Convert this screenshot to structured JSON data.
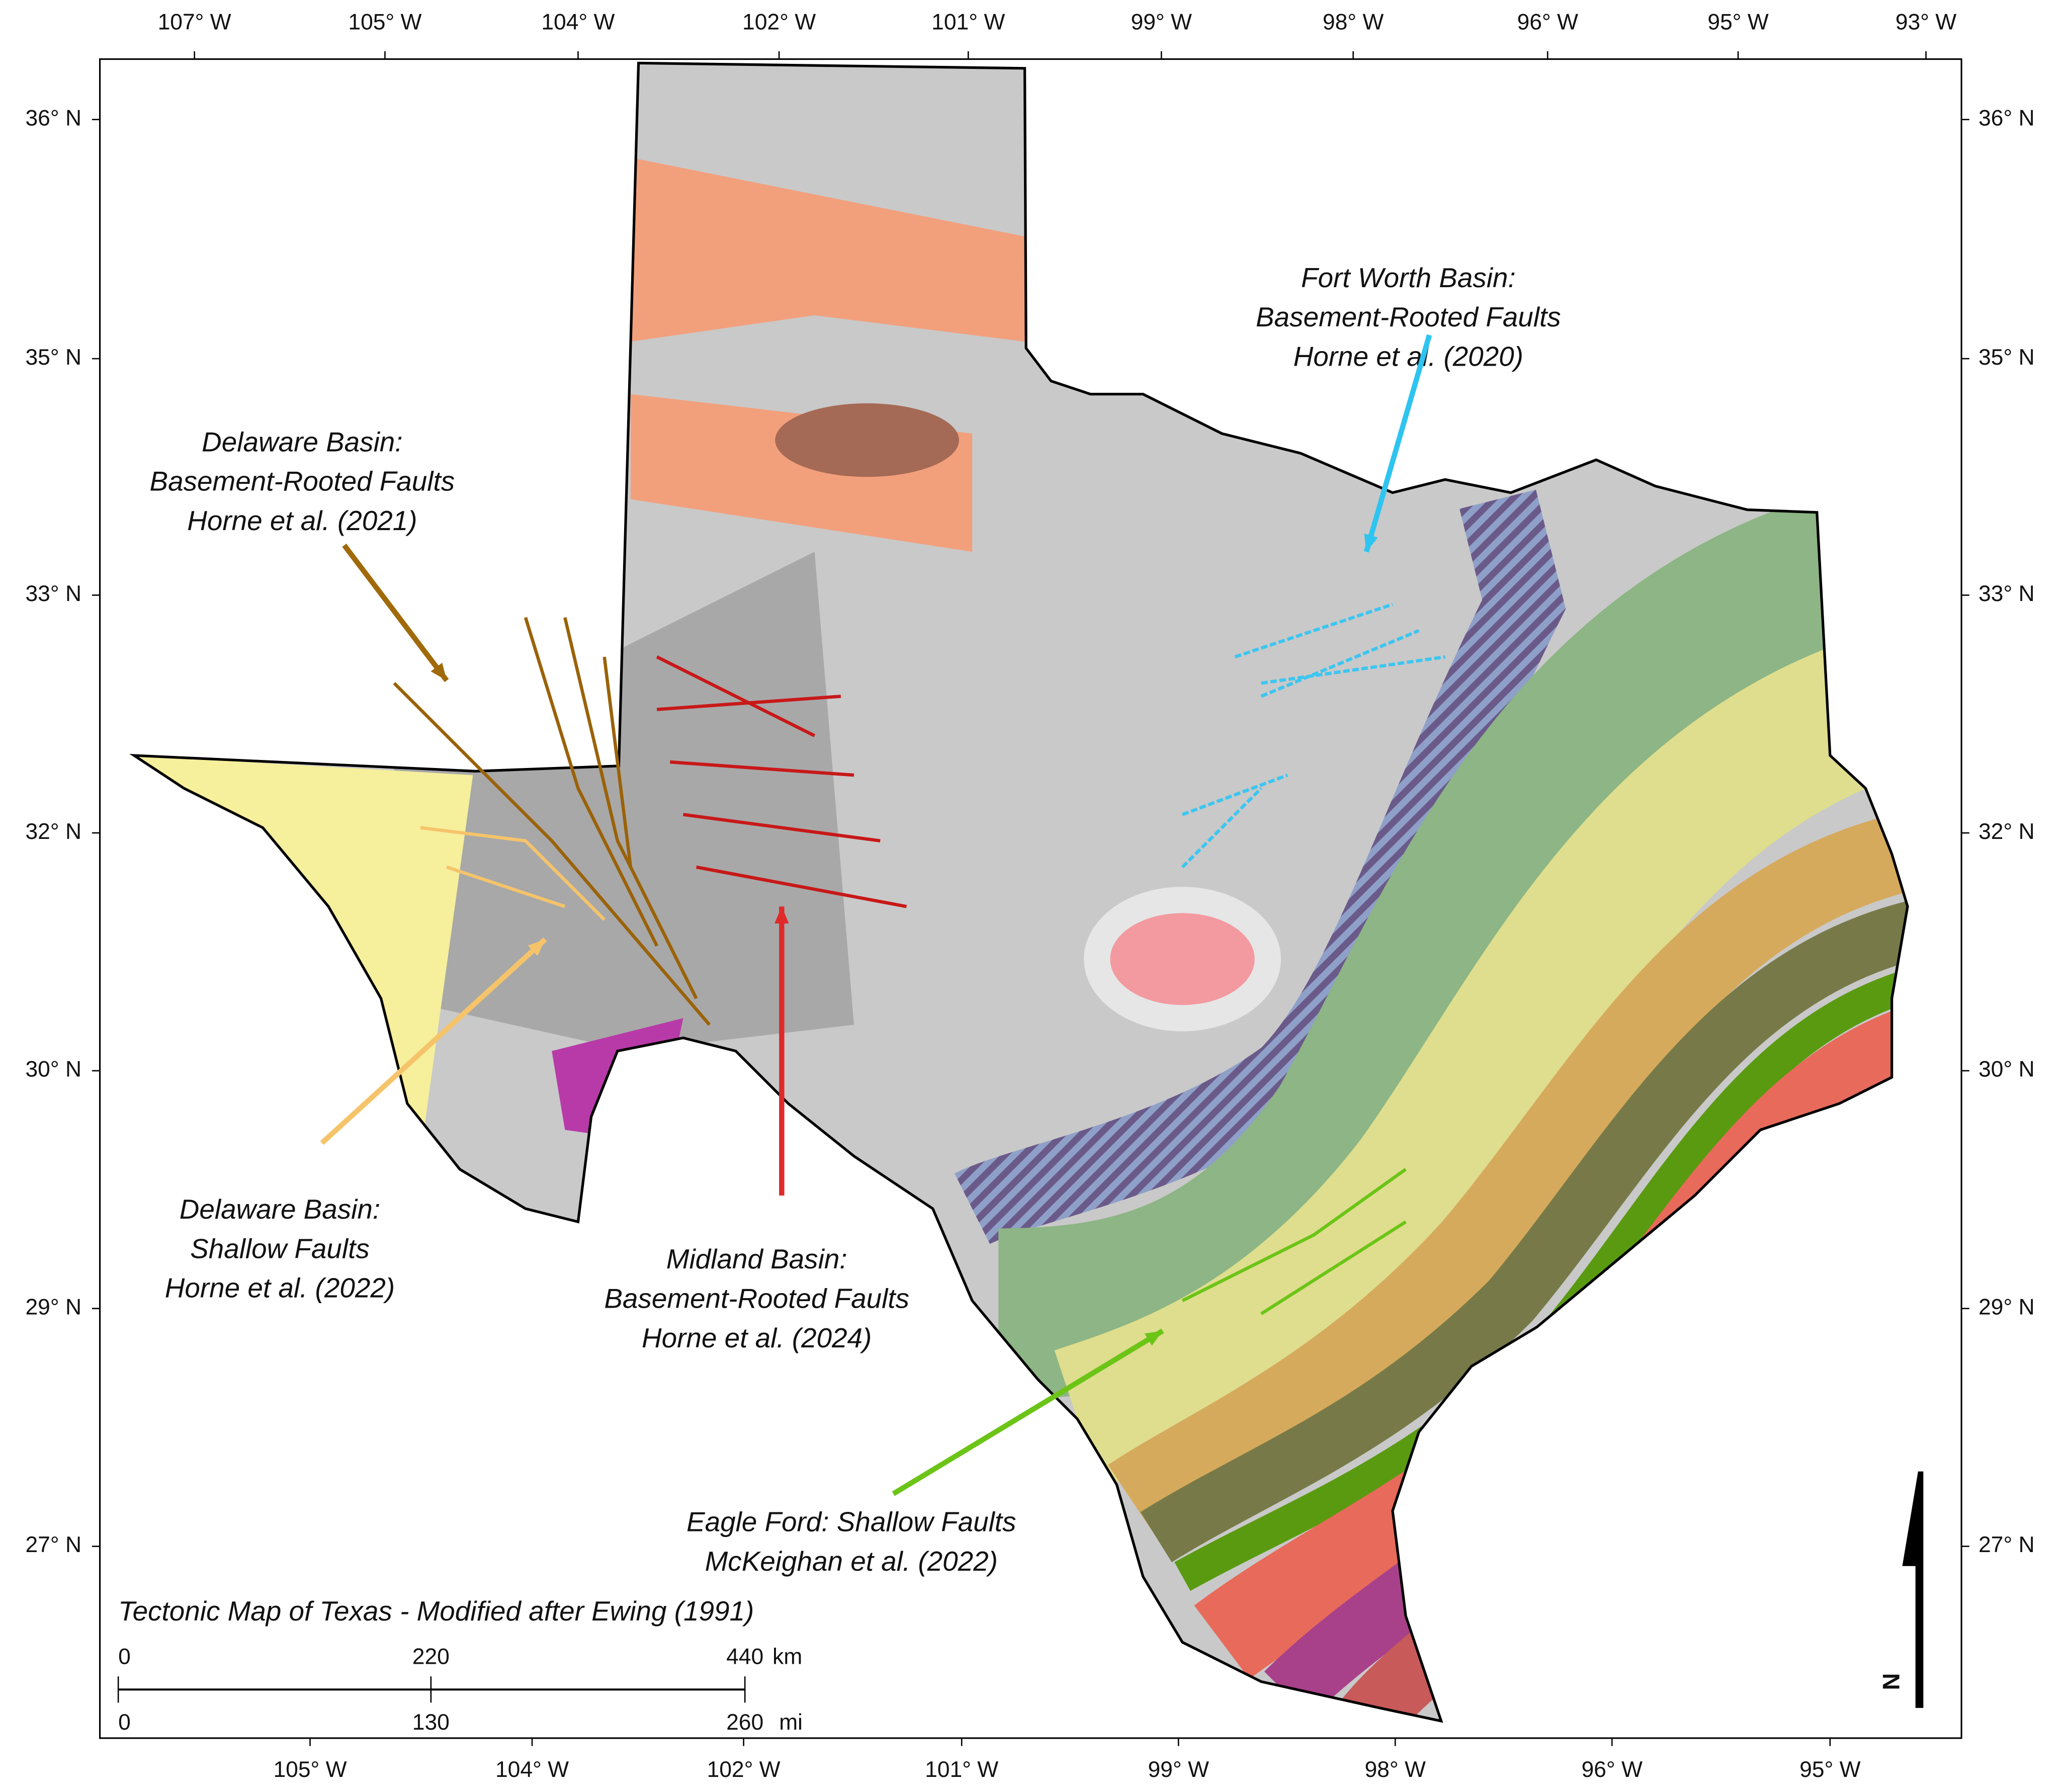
{
  "title": "Tectonic Map of Texas - Modified after Ewing (1991)",
  "axes": {
    "top": [
      "107° W",
      "105° W",
      "104° W",
      "102° W",
      "101° W",
      "99° W",
      "98° W",
      "96° W",
      "95° W",
      "93° W"
    ],
    "bottom": [
      "105° W",
      "104° W",
      "102° W",
      "101° W",
      "99° W",
      "98° W",
      "96° W",
      "95° W"
    ],
    "left": [
      "36° N",
      "35° N",
      "33° N",
      "32° N",
      "30° N",
      "29° N",
      "27° N"
    ],
    "right": [
      "36° N",
      "35° N",
      "33° N",
      "32° N",
      "30° N",
      "29° N",
      "27° N"
    ]
  },
  "annotations": [
    {
      "lines": [
        "Fort Worth Basin:",
        "Basement-Rooted Faults",
        "Horne et al. (2020)"
      ]
    },
    {
      "lines": [
        "Delaware Basin:",
        "Basement-Rooted Faults",
        "Horne et al. (2021)"
      ]
    },
    {
      "lines": [
        "Delaware Basin:",
        "Shallow Faults",
        "Horne et al. (2022)"
      ]
    },
    {
      "lines": [
        "Midland Basin:",
        "Basement-Rooted Faults",
        "Horne et al. (2024)"
      ]
    },
    {
      "lines": [
        "Eagle Ford: Shallow Faults",
        "McKeighan et al. (2022)"
      ]
    }
  ],
  "scale_bar": {
    "km": [
      "0",
      "220",
      "440"
    ],
    "km_unit": "km",
    "mi": [
      "0",
      "130",
      "260"
    ],
    "mi_unit": "mi"
  },
  "north": "N"
}
